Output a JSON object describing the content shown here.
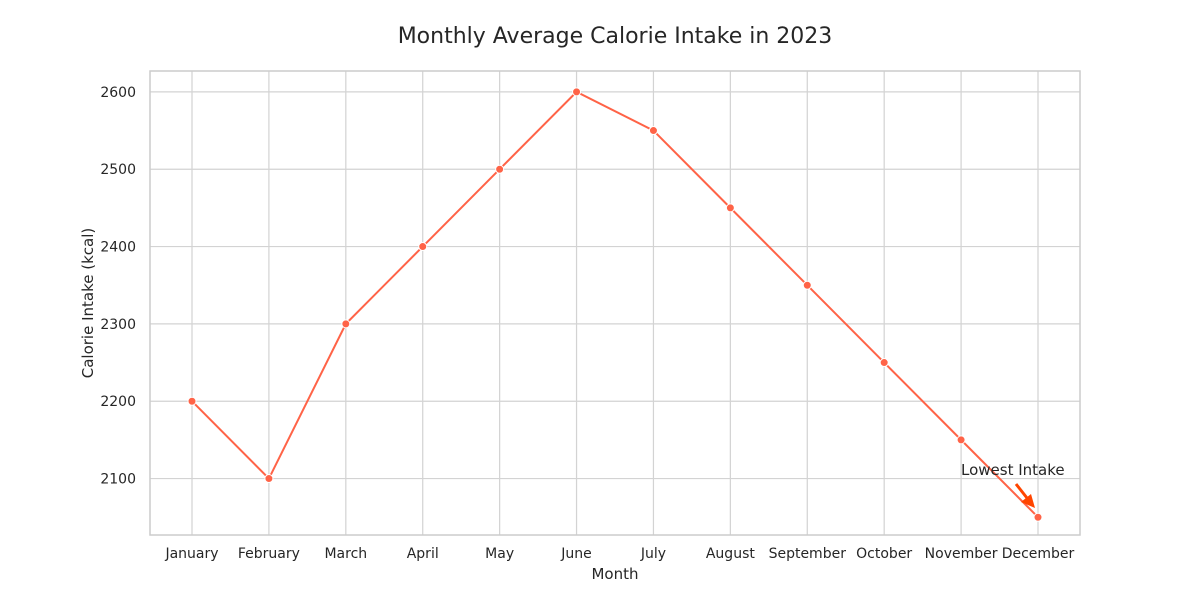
{
  "chart_data": {
    "type": "line",
    "title": "Monthly Average Calorie Intake in 2023",
    "xlabel": "Month",
    "ylabel": "Calorie Intake (kcal)",
    "categories": [
      "January",
      "February",
      "March",
      "April",
      "May",
      "June",
      "July",
      "August",
      "September",
      "October",
      "November",
      "December"
    ],
    "series": [
      {
        "values": [
          2200,
          2100,
          2300,
          2400,
          2500,
          2600,
          2550,
          2450,
          2350,
          2250,
          2150,
          2050
        ]
      }
    ],
    "ylim": [
      2027,
      2627
    ],
    "yticks": [
      2100,
      2200,
      2300,
      2400,
      2500,
      2600
    ],
    "grid": true,
    "legend": "none",
    "colors": {
      "line": "#FF6347",
      "arrow": "#FF4500",
      "grid": "#D3D3D3",
      "frame": "#CCCCCC"
    },
    "annotation": {
      "text": "Lowest Intake",
      "category": "December",
      "value": 2050
    }
  }
}
